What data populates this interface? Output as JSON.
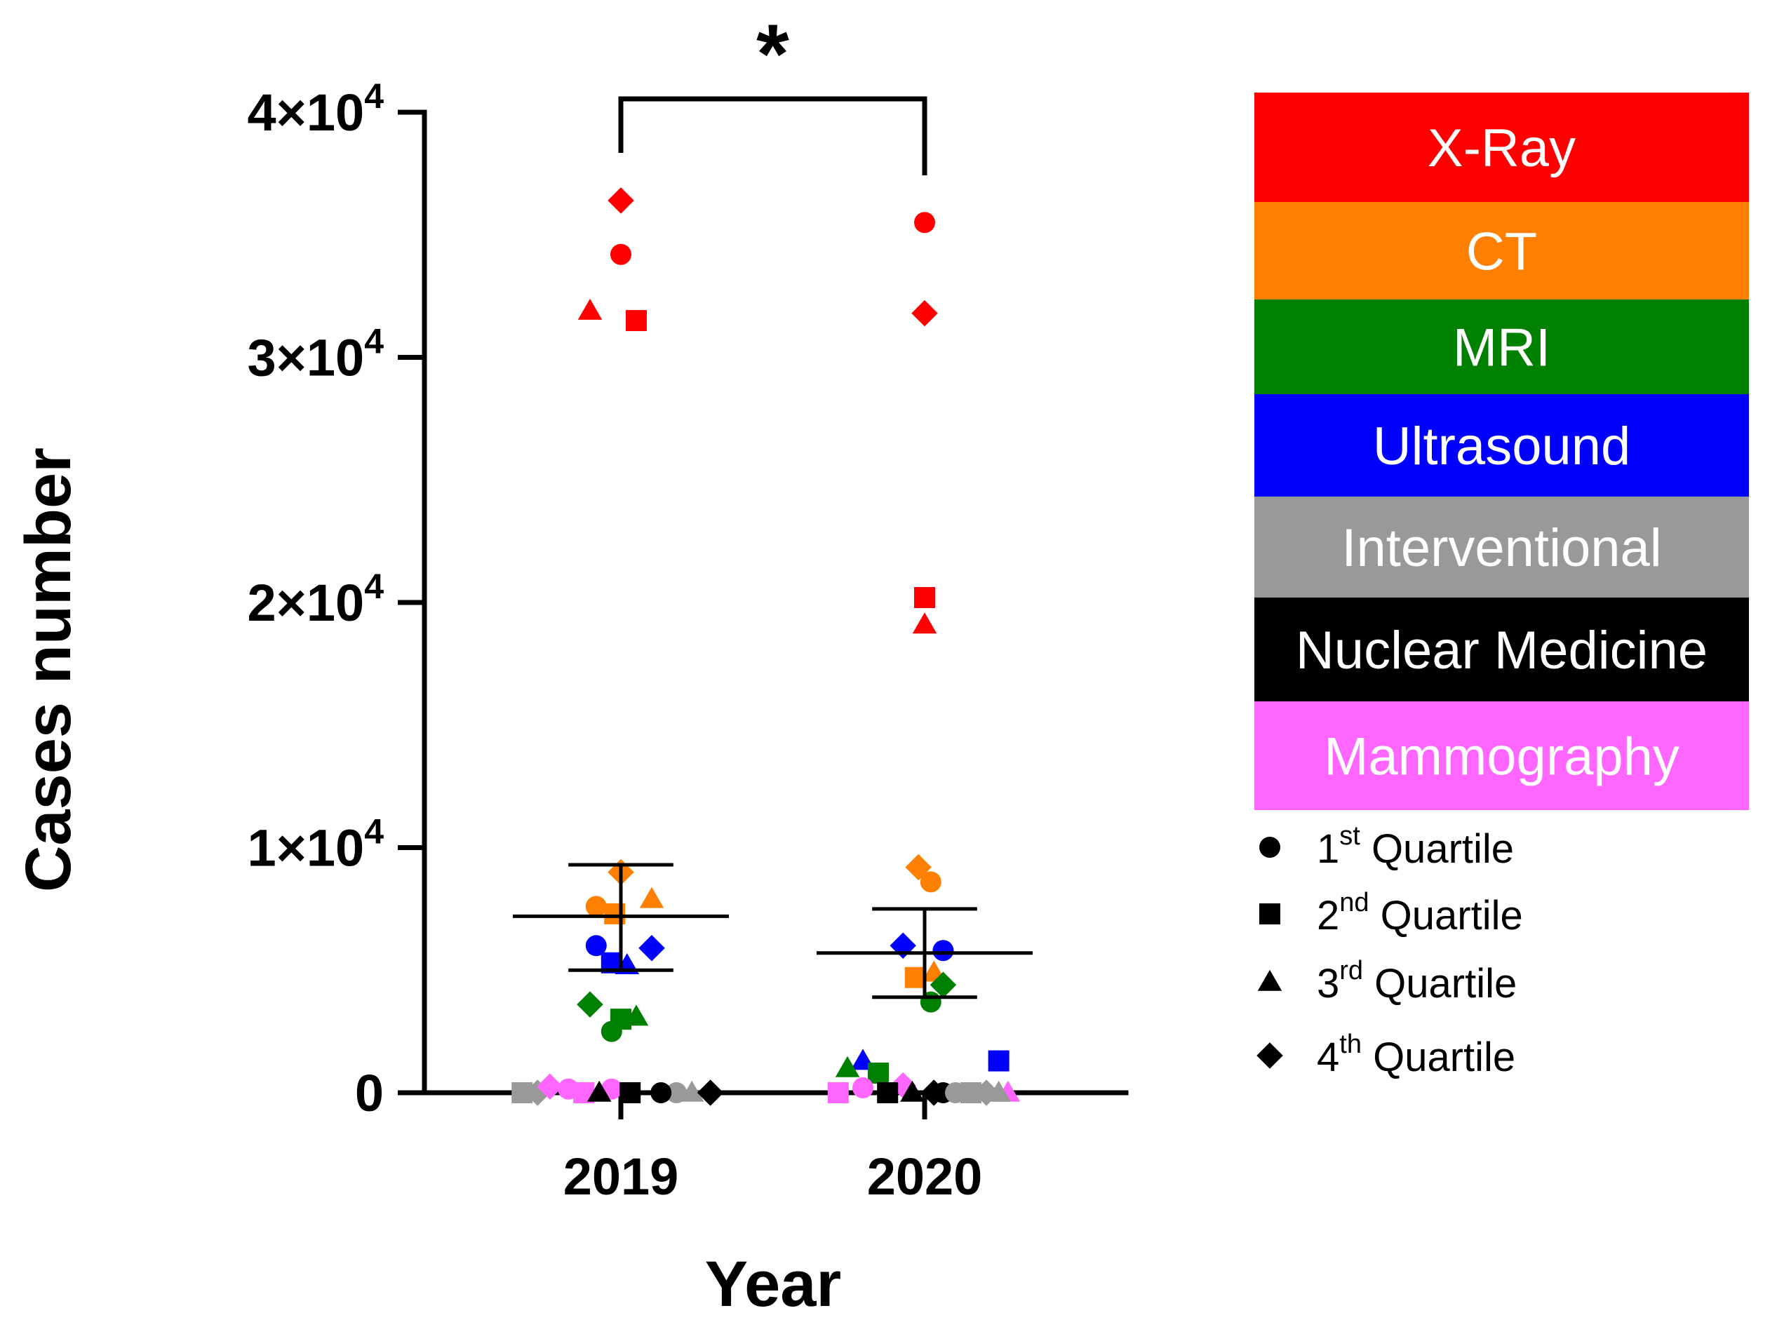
{
  "chart_data": {
    "type": "scatter",
    "title": "",
    "xlabel": "Year",
    "ylabel": "Cases number",
    "categories": [
      "2019",
      "2020"
    ],
    "ylim": [
      0,
      40000
    ],
    "yticks": [
      {
        "value": 0,
        "label": "0",
        "mant": "",
        "exp": ""
      },
      {
        "value": 10000,
        "label": "1×10^4",
        "mant": "1×10",
        "exp": "4"
      },
      {
        "value": 20000,
        "label": "2×10^4",
        "mant": "2×10",
        "exp": "4"
      },
      {
        "value": 30000,
        "label": "3×10^4",
        "mant": "3×10",
        "exp": "4"
      },
      {
        "value": 40000,
        "label": "4×10^4",
        "mant": "4×10",
        "exp": "4"
      }
    ],
    "modalities": [
      {
        "name": "X-Ray",
        "color": "#ff0000"
      },
      {
        "name": "CT",
        "color": "#ff8000"
      },
      {
        "name": "MRI",
        "color": "#008000"
      },
      {
        "name": "Ultrasound",
        "color": "#0000ff"
      },
      {
        "name": "Interventional",
        "color": "#999999"
      },
      {
        "name": "Nuclear Medicine",
        "color": "#000000"
      },
      {
        "name": "Mammography",
        "color": "#ff66ff"
      }
    ],
    "quartiles": [
      {
        "shape": "circle",
        "num": "1",
        "sup": "st",
        "rest": " Quartile"
      },
      {
        "shape": "square",
        "num": "2",
        "sup": "nd",
        "rest": " Quartile"
      },
      {
        "shape": "triangle",
        "num": "3",
        "sup": "rd",
        "rest": " Quartile"
      },
      {
        "shape": "diamond",
        "num": "4",
        "sup": "th",
        "rest": " Quartile"
      }
    ],
    "points": [
      {
        "year": "2019",
        "modality": "X-Ray",
        "shape": "diamond",
        "value": 36400,
        "jitter": 0
      },
      {
        "year": "2019",
        "modality": "X-Ray",
        "shape": "circle",
        "value": 34200,
        "jitter": 0
      },
      {
        "year": "2019",
        "modality": "X-Ray",
        "shape": "triangle",
        "value": 31900,
        "jitter": -0.1
      },
      {
        "year": "2019",
        "modality": "X-Ray",
        "shape": "square",
        "value": 31500,
        "jitter": 0.05
      },
      {
        "year": "2019",
        "modality": "CT",
        "shape": "diamond",
        "value": 9000,
        "jitter": 0
      },
      {
        "year": "2019",
        "modality": "CT",
        "shape": "triangle",
        "value": 7900,
        "jitter": 0.1
      },
      {
        "year": "2019",
        "modality": "CT",
        "shape": "circle",
        "value": 7600,
        "jitter": -0.08
      },
      {
        "year": "2019",
        "modality": "CT",
        "shape": "square",
        "value": 7300,
        "jitter": -0.02
      },
      {
        "year": "2019",
        "modality": "Ultrasound",
        "shape": "circle",
        "value": 6000,
        "jitter": -0.08
      },
      {
        "year": "2019",
        "modality": "Ultrasound",
        "shape": "diamond",
        "value": 5900,
        "jitter": 0.1
      },
      {
        "year": "2019",
        "modality": "Ultrasound",
        "shape": "square",
        "value": 5300,
        "jitter": -0.03
      },
      {
        "year": "2019",
        "modality": "Ultrasound",
        "shape": "triangle",
        "value": 5200,
        "jitter": 0.02
      },
      {
        "year": "2019",
        "modality": "MRI",
        "shape": "diamond",
        "value": 3600,
        "jitter": -0.1
      },
      {
        "year": "2019",
        "modality": "MRI",
        "shape": "triangle",
        "value": 3100,
        "jitter": 0.05
      },
      {
        "year": "2019",
        "modality": "MRI",
        "shape": "square",
        "value": 3000,
        "jitter": 0
      },
      {
        "year": "2019",
        "modality": "MRI",
        "shape": "circle",
        "value": 2500,
        "jitter": -0.03
      },
      {
        "year": "2019",
        "modality": "Interventional",
        "shape": "square",
        "value": 0,
        "jitter": -0.32
      },
      {
        "year": "2019",
        "modality": "Interventional",
        "shape": "diamond",
        "value": 0,
        "jitter": -0.27
      },
      {
        "year": "2019",
        "modality": "Interventional",
        "shape": "circle",
        "value": 0,
        "jitter": 0.18
      },
      {
        "year": "2019",
        "modality": "Interventional",
        "shape": "triangle",
        "value": 0,
        "jitter": 0.23
      },
      {
        "year": "2019",
        "modality": "Mammography",
        "shape": "diamond",
        "value": 250,
        "jitter": -0.23
      },
      {
        "year": "2019",
        "modality": "Mammography",
        "shape": "circle",
        "value": 150,
        "jitter": -0.17
      },
      {
        "year": "2019",
        "modality": "Mammography",
        "shape": "square",
        "value": 0,
        "jitter": -0.12
      },
      {
        "year": "2019",
        "modality": "Mammography",
        "shape": "circle",
        "value": 150,
        "jitter": -0.03
      },
      {
        "year": "2019",
        "modality": "Nuclear Medicine",
        "shape": "triangle",
        "value": 0,
        "jitter": -0.07
      },
      {
        "year": "2019",
        "modality": "Nuclear Medicine",
        "shape": "square",
        "value": 0,
        "jitter": 0.03
      },
      {
        "year": "2019",
        "modality": "Nuclear Medicine",
        "shape": "circle",
        "value": 0,
        "jitter": 0.13
      },
      {
        "year": "2019",
        "modality": "Nuclear Medicine",
        "shape": "diamond",
        "value": 0,
        "jitter": 0.29
      },
      {
        "year": "2020",
        "modality": "X-Ray",
        "shape": "circle",
        "value": 35500,
        "jitter": 0
      },
      {
        "year": "2020",
        "modality": "X-Ray",
        "shape": "diamond",
        "value": 31800,
        "jitter": 0
      },
      {
        "year": "2020",
        "modality": "X-Ray",
        "shape": "square",
        "value": 20200,
        "jitter": 0
      },
      {
        "year": "2020",
        "modality": "X-Ray",
        "shape": "triangle",
        "value": 19100,
        "jitter": 0
      },
      {
        "year": "2020",
        "modality": "CT",
        "shape": "diamond",
        "value": 9200,
        "jitter": -0.02
      },
      {
        "year": "2020",
        "modality": "CT",
        "shape": "circle",
        "value": 8600,
        "jitter": 0.02
      },
      {
        "year": "2020",
        "modality": "CT",
        "shape": "square",
        "value": 4700,
        "jitter": -0.03
      },
      {
        "year": "2020",
        "modality": "CT",
        "shape": "triangle",
        "value": 4900,
        "jitter": 0.03
      },
      {
        "year": "2020",
        "modality": "Ultrasound",
        "shape": "diamond",
        "value": 6000,
        "jitter": -0.07
      },
      {
        "year": "2020",
        "modality": "Ultrasound",
        "shape": "circle",
        "value": 5800,
        "jitter": 0.06
      },
      {
        "year": "2020",
        "modality": "Ultrasound",
        "shape": "square",
        "value": 1300,
        "jitter": 0.24
      },
      {
        "year": "2020",
        "modality": "Ultrasound",
        "shape": "triangle",
        "value": 1300,
        "jitter": -0.2
      },
      {
        "year": "2020",
        "modality": "MRI",
        "shape": "diamond",
        "value": 4400,
        "jitter": 0.06
      },
      {
        "year": "2020",
        "modality": "MRI",
        "shape": "circle",
        "value": 3700,
        "jitter": 0.02
      },
      {
        "year": "2020",
        "modality": "MRI",
        "shape": "triangle",
        "value": 1000,
        "jitter": -0.25
      },
      {
        "year": "2020",
        "modality": "MRI",
        "shape": "square",
        "value": 800,
        "jitter": -0.15
      },
      {
        "year": "2020",
        "modality": "Mammography",
        "shape": "square",
        "value": 0,
        "jitter": -0.28
      },
      {
        "year": "2020",
        "modality": "Mammography",
        "shape": "circle",
        "value": 200,
        "jitter": -0.2
      },
      {
        "year": "2020",
        "modality": "Mammography",
        "shape": "diamond",
        "value": 300,
        "jitter": -0.07
      },
      {
        "year": "2020",
        "modality": "Mammography",
        "shape": "triangle",
        "value": 0,
        "jitter": 0.27
      },
      {
        "year": "2020",
        "modality": "Nuclear Medicine",
        "shape": "square",
        "value": 0,
        "jitter": -0.12
      },
      {
        "year": "2020",
        "modality": "Nuclear Medicine",
        "shape": "triangle",
        "value": 0,
        "jitter": -0.04
      },
      {
        "year": "2020",
        "modality": "Nuclear Medicine",
        "shape": "diamond",
        "value": 0,
        "jitter": 0.03
      },
      {
        "year": "2020",
        "modality": "Nuclear Medicine",
        "shape": "circle",
        "value": 0,
        "jitter": 0.06
      },
      {
        "year": "2020",
        "modality": "Interventional",
        "shape": "circle",
        "value": 0,
        "jitter": 0.1
      },
      {
        "year": "2020",
        "modality": "Interventional",
        "shape": "square",
        "value": 0,
        "jitter": 0.15
      },
      {
        "year": "2020",
        "modality": "Interventional",
        "shape": "diamond",
        "value": 0,
        "jitter": 0.2
      },
      {
        "year": "2020",
        "modality": "Interventional",
        "shape": "triangle",
        "value": 0,
        "jitter": 0.24
      }
    ],
    "summary": [
      {
        "year": "2019",
        "mean": 7200,
        "lower": 5000,
        "upper": 9300
      },
      {
        "year": "2020",
        "mean": 5700,
        "lower": 3900,
        "upper": 7500
      }
    ],
    "significance": {
      "from": "2019",
      "to": "2020",
      "label": "*"
    }
  }
}
